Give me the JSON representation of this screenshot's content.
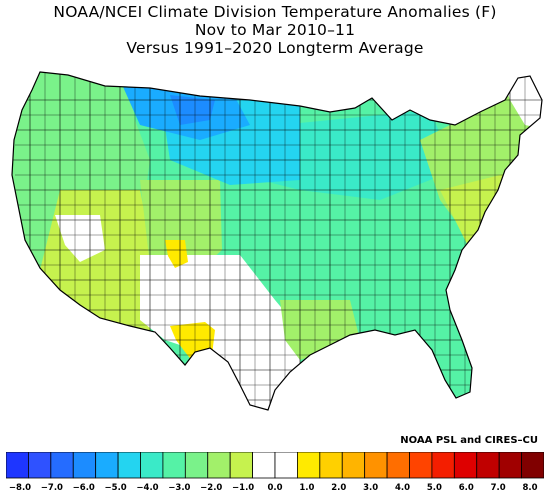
{
  "title": {
    "line1": "NOAA/NCEI Climate Division Temperature Anomalies (F)",
    "line2": "Nov to Mar 2010–11",
    "line3": "Versus 1991–2020 Longterm Average"
  },
  "credit": "NOAA PSL and CIRES–CU",
  "legend": {
    "units": "F",
    "bins": [
      {
        "color": "#1e36ff"
      },
      {
        "color": "#2f52ff"
      },
      {
        "color": "#256cff"
      },
      {
        "color": "#1c8cff"
      },
      {
        "color": "#1aacff"
      },
      {
        "color": "#24d4f0"
      },
      {
        "color": "#3aeac8"
      },
      {
        "color": "#55f2a6"
      },
      {
        "color": "#7af28a"
      },
      {
        "color": "#a2f06a"
      },
      {
        "color": "#c6f24e"
      },
      {
        "color": "#ffffff"
      },
      {
        "color": "#ffffff"
      },
      {
        "color": "#ffea00"
      },
      {
        "color": "#ffd000"
      },
      {
        "color": "#ffb400"
      },
      {
        "color": "#ff9200"
      },
      {
        "color": "#ff6e00"
      },
      {
        "color": "#ff4400"
      },
      {
        "color": "#f41e00"
      },
      {
        "color": "#de0000"
      },
      {
        "color": "#c00000"
      },
      {
        "color": "#a00000"
      },
      {
        "color": "#800000"
      }
    ],
    "tick_labels": [
      "−8.0",
      "−7.0",
      "−6.0",
      "−5.0",
      "−4.0",
      "−3.0",
      "−2.0",
      "−1.0",
      "0.0",
      "1.0",
      "2.0",
      "3.0",
      "4.0",
      "5.0",
      "6.0",
      "7.0",
      "8.0"
    ]
  },
  "map": {
    "description_colors": {
      "north_plains": "#1aacff",
      "dakotas": "#24d4f0",
      "great_lakes": "#3aeac8",
      "central": "#55f2a6",
      "west": "#7af28a",
      "southwest": "#c6f24e",
      "new_mexico": "#a2f06a",
      "texas_south": "#ffffff",
      "west_texas_anomaly": "#ffea00",
      "colorado_anomaly": "#ffea00",
      "northeast": "#a2f06a",
      "new_england_north": "#ffffff",
      "southeast": "#55f2a6",
      "outline": "#000000"
    }
  }
}
